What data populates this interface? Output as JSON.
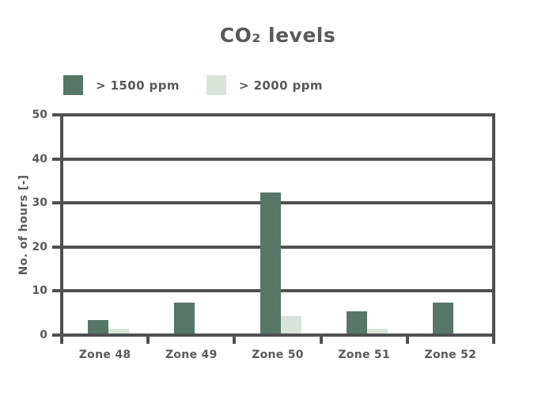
{
  "title": "CO₂ levels",
  "legend": {
    "items": [
      {
        "label": "> 1500 ppm",
        "color": "#567667"
      },
      {
        "label": "> 2000 ppm",
        "color": "#d9e3da"
      }
    ]
  },
  "y_axis": {
    "label": "No. of hours [-]",
    "ticks": [
      "0",
      "10",
      "20",
      "30",
      "40",
      "50"
    ]
  },
  "chart_data": {
    "type": "bar",
    "title": "CO₂ levels",
    "categories": [
      "Zone 48",
      "Zone 49",
      "Zone 50",
      "Zone 51",
      "Zone 52"
    ],
    "series": [
      {
        "name": "> 1500 ppm",
        "color": "#567667",
        "values": [
          3,
          7,
          32,
          5,
          7
        ]
      },
      {
        "name": "> 2000 ppm",
        "color": "#d9e3da",
        "values": [
          1,
          0,
          4,
          1,
          0
        ]
      }
    ],
    "xlabel": "",
    "ylabel": "No. of hours [-]",
    "ylim": [
      0,
      50
    ],
    "yticks": [
      0,
      10,
      20,
      30,
      40,
      50
    ],
    "grid": true,
    "legend_position": "top-left"
  },
  "colors": {
    "bar_dark": "#567667",
    "bar_light": "#d9e3da",
    "axis_line": "#4f5052",
    "text": "#58595b",
    "background": "#ffffff"
  }
}
